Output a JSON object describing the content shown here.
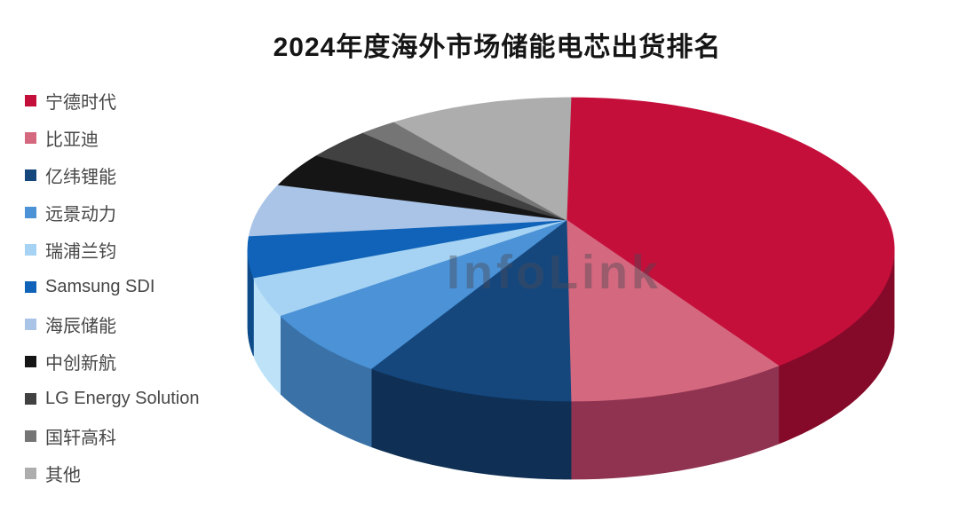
{
  "header": {
    "title": "2024年度海外市场储能电芯出货排名"
  },
  "watermark": {
    "text": "InfoLink"
  },
  "legend": {
    "position": "left",
    "items": [
      {
        "label": "宁德时代",
        "color": "#C50F3B"
      },
      {
        "label": "比亚迪",
        "color": "#D4687F"
      },
      {
        "label": "亿纬锂能",
        "color": "#15477D"
      },
      {
        "label": "远景动力",
        "color": "#4B92D6"
      },
      {
        "label": "瑞浦兰钧",
        "color": "#A6D3F3"
      },
      {
        "label": "Samsung SDI",
        "color": "#1063B8"
      },
      {
        "label": "海辰储能",
        "color": "#A9C4E7"
      },
      {
        "label": "中创新航",
        "color": "#151515"
      },
      {
        "label": "LG Energy Solution",
        "color": "#414141"
      },
      {
        "label": "国轩高科",
        "color": "#757575"
      },
      {
        "label": "其他",
        "color": "#ADADAD"
      }
    ]
  },
  "chart_data": {
    "type": "pie",
    "style": "3d",
    "title": "2024年度海外市场储能电芯出货排名",
    "unit": "percent of shipments (estimated from slice angles; chart shows no numeric labels)",
    "categories": [
      "宁德时代",
      "比亚迪",
      "亿纬锂能",
      "远景动力",
      "瑞浦兰钧",
      "Samsung SDI",
      "海辰储能",
      "中创新航",
      "LG Energy Solution",
      "国轩高科",
      "其他"
    ],
    "values": [
      38.9,
      11.1,
      10.6,
      7.2,
      4.2,
      4.4,
      5.6,
      3.6,
      3.3,
      1.9,
      9.2
    ],
    "colors": [
      "#C50F3B",
      "#D4687F",
      "#15477D",
      "#4B92D6",
      "#A6D3F3",
      "#1063B8",
      "#A9C4E7",
      "#151515",
      "#414141",
      "#757575",
      "#ADADAD"
    ],
    "side_colors": [
      "#850A29",
      "#8F3350",
      "#0F3054",
      "#3A71A6",
      "#BEE3F9",
      "#0C4A8A",
      "#7E97B8",
      "#000000",
      "#2B2B2B",
      "#565656",
      "#8F8F8F"
    ],
    "start_angle_deg": 0,
    "clockwise": true,
    "legend_position": "left",
    "labels_shown": false,
    "watermark": "InfoLink"
  }
}
